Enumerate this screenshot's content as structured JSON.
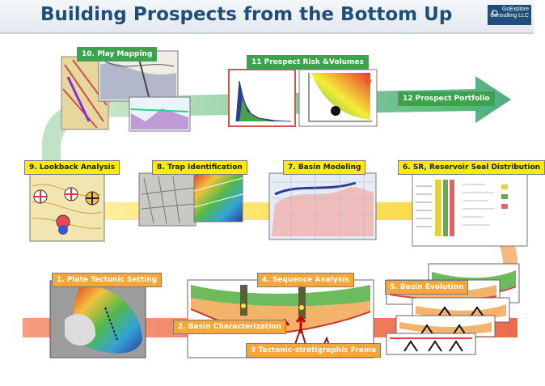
{
  "header": {
    "title": "Building Prospects from the Bottom Up",
    "brand_line1": "GoExplore",
    "brand_line2": "Consulting LLC"
  },
  "steps": {
    "s1": "1. Plate Tectonic Setting",
    "s2": "2. Basin Characterization",
    "s3": "3 Tectonic-stratigraphic Frame",
    "s4": "4. Sequence Analysis",
    "s5": "5. Basin Evolution",
    "s6": "6. SR, Reservoir Seal  Distribution",
    "s7": "7. Basin Modeling",
    "s8": "8. Trap Identification",
    "s9": "9. Lookback Analysis",
    "s10": "10. Play Mapping",
    "s11": "11 Prospect Risk &Volumes",
    "s12": "12 Prospect Portfolio"
  },
  "colors": {
    "title": "#1f4e79",
    "arrow_green": "#6fbf8a",
    "band_yellow": "#fbe36a",
    "band_salmon": "#f07a5a",
    "label_green": "#3ca34a",
    "label_yellow": "#ffeb00",
    "label_orange": "#f7a638"
  }
}
